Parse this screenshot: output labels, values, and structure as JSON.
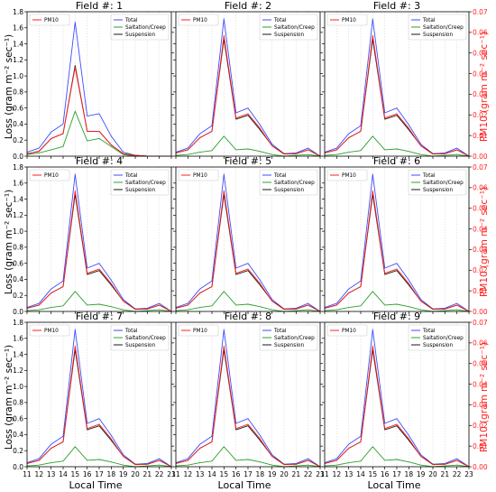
{
  "figure": {
    "xlabel": "Local Time",
    "ylabel_left": "Loss (gram m⁻² sec⁻¹)",
    "ylabel_right": "PM10 (gram m⁻² sec⁻¹)"
  },
  "colors": {
    "total": "#3b4cff",
    "saltation": "#2ca02c",
    "suspension": "#1a1a1a",
    "pm10": "#ff1f1f",
    "grid": "#d9d9d9",
    "axis": "#000000"
  },
  "legend_labels": {
    "pm10": "PM10",
    "total": "Total",
    "saltation": "Saltation/Creep",
    "suspension": "Suspension"
  },
  "chart_data": [
    {
      "type": "line",
      "title": "Field #: 1",
      "x": [
        11,
        12,
        13,
        14,
        15,
        16,
        17,
        18,
        19,
        20,
        21,
        22,
        23
      ],
      "xlim": [
        11,
        23
      ],
      "ylim_left": [
        0,
        1.8
      ],
      "ylim_right": [
        0,
        0.07
      ],
      "left_ticks": [
        "0.0",
        "0.2",
        "0.4",
        "0.6",
        "0.8",
        "1.0",
        "1.2",
        "1.4",
        "1.6",
        "1.8"
      ],
      "right_ticks": [
        "0.00",
        "0.01",
        "0.02",
        "0.03",
        "0.04",
        "0.05",
        "0.06",
        "0.07"
      ],
      "series": [
        {
          "name": "Total",
          "axis": "left",
          "values": [
            0.05,
            0.1,
            0.3,
            0.4,
            1.67,
            0.5,
            0.53,
            0.25,
            0.05,
            0.01,
            0.0,
            0.0,
            0.0
          ]
        },
        {
          "name": "Saltation/Creep",
          "axis": "left",
          "values": [
            0.02,
            0.04,
            0.08,
            0.12,
            0.56,
            0.19,
            0.22,
            0.12,
            0.02,
            0.0,
            0.0,
            0.0,
            0.0
          ]
        },
        {
          "name": "Suspension",
          "axis": "left",
          "values": [
            0.03,
            0.06,
            0.22,
            0.28,
            1.13,
            0.31,
            0.31,
            0.14,
            0.03,
            0.01,
            0.0,
            0.0,
            0.0
          ]
        },
        {
          "name": "PM10",
          "axis": "right",
          "values": [
            0.001,
            0.0025,
            0.0085,
            0.011,
            0.043,
            0.012,
            0.012,
            0.0055,
            0.0012,
            0.0004,
            0.0,
            0.0,
            0.0
          ]
        }
      ]
    },
    {
      "type": "line",
      "title": "Field #: 2",
      "x": [
        11,
        12,
        13,
        14,
        15,
        16,
        17,
        18,
        19,
        20,
        21,
        22,
        23
      ],
      "xlim": [
        11,
        23
      ],
      "ylim_left": [
        0,
        1.8
      ],
      "ylim_right": [
        0,
        0.07
      ],
      "left_ticks": [
        "0.0",
        "0.2",
        "0.4",
        "0.6",
        "0.8",
        "1.0",
        "1.2",
        "1.4",
        "1.6",
        "1.8"
      ],
      "right_ticks": [
        "0.00",
        "0.01",
        "0.02",
        "0.03",
        "0.04",
        "0.05",
        "0.06",
        "0.07"
      ],
      "series": [
        {
          "name": "Total",
          "axis": "left",
          "values": [
            0.05,
            0.1,
            0.28,
            0.38,
            1.71,
            0.54,
            0.6,
            0.39,
            0.15,
            0.03,
            0.04,
            0.1,
            0.0
          ]
        },
        {
          "name": "Saltation/Creep",
          "axis": "left",
          "values": [
            0.01,
            0.02,
            0.05,
            0.07,
            0.25,
            0.08,
            0.09,
            0.06,
            0.02,
            0.0,
            0.01,
            0.02,
            0.0
          ]
        },
        {
          "name": "Suspension",
          "axis": "left",
          "values": [
            0.04,
            0.08,
            0.23,
            0.31,
            1.46,
            0.46,
            0.51,
            0.33,
            0.13,
            0.03,
            0.03,
            0.08,
            0.0
          ]
        },
        {
          "name": "PM10",
          "axis": "right",
          "values": [
            0.0016,
            0.003,
            0.009,
            0.012,
            0.0585,
            0.0185,
            0.0205,
            0.0135,
            0.005,
            0.001,
            0.0012,
            0.003,
            0.0
          ]
        }
      ]
    },
    {
      "type": "line",
      "title": "Field #: 3",
      "x": [
        11,
        12,
        13,
        14,
        15,
        16,
        17,
        18,
        19,
        20,
        21,
        22,
        23
      ],
      "xlim": [
        11,
        23
      ],
      "ylim_left": [
        0,
        1.8
      ],
      "ylim_right": [
        0,
        0.07
      ],
      "left_ticks": [
        "0.0",
        "0.2",
        "0.4",
        "0.6",
        "0.8",
        "1.0",
        "1.2",
        "1.4",
        "1.6",
        "1.8"
      ],
      "right_ticks": [
        "0.00",
        "0.01",
        "0.02",
        "0.03",
        "0.04",
        "0.05",
        "0.06",
        "0.07"
      ],
      "series": [
        {
          "name": "Total",
          "axis": "left",
          "values": [
            0.05,
            0.1,
            0.28,
            0.38,
            1.71,
            0.54,
            0.6,
            0.39,
            0.15,
            0.03,
            0.04,
            0.1,
            0.0
          ]
        },
        {
          "name": "Saltation/Creep",
          "axis": "left",
          "values": [
            0.01,
            0.02,
            0.05,
            0.07,
            0.25,
            0.08,
            0.09,
            0.06,
            0.02,
            0.0,
            0.01,
            0.02,
            0.0
          ]
        },
        {
          "name": "Suspension",
          "axis": "left",
          "values": [
            0.04,
            0.08,
            0.23,
            0.31,
            1.46,
            0.46,
            0.51,
            0.33,
            0.13,
            0.03,
            0.03,
            0.08,
            0.0
          ]
        },
        {
          "name": "PM10",
          "axis": "right",
          "values": [
            0.0016,
            0.003,
            0.009,
            0.012,
            0.0585,
            0.0185,
            0.0205,
            0.0135,
            0.005,
            0.001,
            0.0012,
            0.003,
            0.0
          ]
        }
      ]
    },
    {
      "type": "line",
      "title": "Field #: 4",
      "x": [
        11,
        12,
        13,
        14,
        15,
        16,
        17,
        18,
        19,
        20,
        21,
        22,
        23
      ],
      "xlim": [
        11,
        23
      ],
      "ylim_left": [
        0,
        1.8
      ],
      "ylim_right": [
        0,
        0.07
      ],
      "left_ticks": [
        "0.0",
        "0.2",
        "0.4",
        "0.6",
        "0.8",
        "1.0",
        "1.2",
        "1.4",
        "1.6",
        "1.8"
      ],
      "right_ticks": [
        "0.00",
        "0.01",
        "0.02",
        "0.03",
        "0.04",
        "0.05",
        "0.06",
        "0.07"
      ],
      "series": [
        {
          "name": "Total",
          "axis": "left",
          "values": [
            0.05,
            0.1,
            0.28,
            0.38,
            1.71,
            0.54,
            0.6,
            0.39,
            0.15,
            0.03,
            0.04,
            0.1,
            0.0
          ]
        },
        {
          "name": "Saltation/Creep",
          "axis": "left",
          "values": [
            0.01,
            0.02,
            0.05,
            0.07,
            0.25,
            0.08,
            0.09,
            0.06,
            0.02,
            0.0,
            0.01,
            0.02,
            0.0
          ]
        },
        {
          "name": "Suspension",
          "axis": "left",
          "values": [
            0.04,
            0.08,
            0.23,
            0.31,
            1.46,
            0.46,
            0.51,
            0.33,
            0.13,
            0.03,
            0.03,
            0.08,
            0.0
          ]
        },
        {
          "name": "PM10",
          "axis": "right",
          "values": [
            0.0016,
            0.003,
            0.009,
            0.012,
            0.0585,
            0.0185,
            0.0205,
            0.0135,
            0.005,
            0.001,
            0.0012,
            0.003,
            0.0
          ]
        }
      ]
    },
    {
      "type": "line",
      "title": "Field #: 5",
      "x": [
        11,
        12,
        13,
        14,
        15,
        16,
        17,
        18,
        19,
        20,
        21,
        22,
        23
      ],
      "xlim": [
        11,
        23
      ],
      "ylim_left": [
        0,
        1.8
      ],
      "ylim_right": [
        0,
        0.07
      ],
      "left_ticks": [
        "0.0",
        "0.2",
        "0.4",
        "0.6",
        "0.8",
        "1.0",
        "1.2",
        "1.4",
        "1.6",
        "1.8"
      ],
      "right_ticks": [
        "0.00",
        "0.01",
        "0.02",
        "0.03",
        "0.04",
        "0.05",
        "0.06",
        "0.07"
      ],
      "series": [
        {
          "name": "Total",
          "axis": "left",
          "values": [
            0.05,
            0.1,
            0.28,
            0.38,
            1.71,
            0.54,
            0.6,
            0.39,
            0.15,
            0.03,
            0.04,
            0.1,
            0.0
          ]
        },
        {
          "name": "Saltation/Creep",
          "axis": "left",
          "values": [
            0.01,
            0.02,
            0.05,
            0.07,
            0.25,
            0.08,
            0.09,
            0.06,
            0.02,
            0.0,
            0.01,
            0.02,
            0.0
          ]
        },
        {
          "name": "Suspension",
          "axis": "left",
          "values": [
            0.04,
            0.08,
            0.23,
            0.31,
            1.46,
            0.46,
            0.51,
            0.33,
            0.13,
            0.03,
            0.03,
            0.08,
            0.0
          ]
        },
        {
          "name": "PM10",
          "axis": "right",
          "values": [
            0.0016,
            0.003,
            0.009,
            0.012,
            0.0585,
            0.0185,
            0.0205,
            0.0135,
            0.005,
            0.001,
            0.0012,
            0.003,
            0.0
          ]
        }
      ]
    },
    {
      "type": "line",
      "title": "Field #: 6",
      "x": [
        11,
        12,
        13,
        14,
        15,
        16,
        17,
        18,
        19,
        20,
        21,
        22,
        23
      ],
      "xlim": [
        11,
        23
      ],
      "ylim_left": [
        0,
        1.8
      ],
      "ylim_right": [
        0,
        0.07
      ],
      "left_ticks": [
        "0.0",
        "0.2",
        "0.4",
        "0.6",
        "0.8",
        "1.0",
        "1.2",
        "1.4",
        "1.6",
        "1.8"
      ],
      "right_ticks": [
        "0.00",
        "0.01",
        "0.02",
        "0.03",
        "0.04",
        "0.05",
        "0.06",
        "0.07"
      ],
      "series": [
        {
          "name": "Total",
          "axis": "left",
          "values": [
            0.05,
            0.1,
            0.28,
            0.38,
            1.71,
            0.54,
            0.6,
            0.39,
            0.15,
            0.03,
            0.04,
            0.1,
            0.0
          ]
        },
        {
          "name": "Saltation/Creep",
          "axis": "left",
          "values": [
            0.01,
            0.02,
            0.05,
            0.07,
            0.25,
            0.08,
            0.09,
            0.06,
            0.02,
            0.0,
            0.01,
            0.02,
            0.0
          ]
        },
        {
          "name": "Suspension",
          "axis": "left",
          "values": [
            0.04,
            0.08,
            0.23,
            0.31,
            1.46,
            0.46,
            0.51,
            0.33,
            0.13,
            0.03,
            0.03,
            0.08,
            0.0
          ]
        },
        {
          "name": "PM10",
          "axis": "right",
          "values": [
            0.0016,
            0.003,
            0.009,
            0.012,
            0.0585,
            0.0185,
            0.0205,
            0.0135,
            0.005,
            0.001,
            0.0012,
            0.003,
            0.0
          ]
        }
      ]
    },
    {
      "type": "line",
      "title": "Field #: 7",
      "x": [
        11,
        12,
        13,
        14,
        15,
        16,
        17,
        18,
        19,
        20,
        21,
        22,
        23
      ],
      "xlim": [
        11,
        23
      ],
      "ylim_left": [
        0,
        1.8
      ],
      "ylim_right": [
        0,
        0.07
      ],
      "left_ticks": [
        "0.0",
        "0.2",
        "0.4",
        "0.6",
        "0.8",
        "1.0",
        "1.2",
        "1.4",
        "1.6",
        "1.8"
      ],
      "right_ticks": [
        "0.00",
        "0.01",
        "0.02",
        "0.03",
        "0.04",
        "0.05",
        "0.06",
        "0.07"
      ],
      "series": [
        {
          "name": "Total",
          "axis": "left",
          "values": [
            0.05,
            0.1,
            0.28,
            0.38,
            1.71,
            0.54,
            0.6,
            0.39,
            0.15,
            0.03,
            0.04,
            0.1,
            0.0
          ]
        },
        {
          "name": "Saltation/Creep",
          "axis": "left",
          "values": [
            0.01,
            0.02,
            0.05,
            0.07,
            0.25,
            0.08,
            0.09,
            0.06,
            0.02,
            0.0,
            0.01,
            0.02,
            0.0
          ]
        },
        {
          "name": "Suspension",
          "axis": "left",
          "values": [
            0.04,
            0.08,
            0.23,
            0.31,
            1.46,
            0.46,
            0.51,
            0.33,
            0.13,
            0.03,
            0.03,
            0.08,
            0.0
          ]
        },
        {
          "name": "PM10",
          "axis": "right",
          "values": [
            0.0016,
            0.003,
            0.009,
            0.012,
            0.0585,
            0.0185,
            0.0205,
            0.0135,
            0.005,
            0.001,
            0.0012,
            0.003,
            0.0
          ]
        }
      ]
    },
    {
      "type": "line",
      "title": "Field #: 8",
      "x": [
        11,
        12,
        13,
        14,
        15,
        16,
        17,
        18,
        19,
        20,
        21,
        22,
        23
      ],
      "xlim": [
        11,
        23
      ],
      "ylim_left": [
        0,
        1.8
      ],
      "ylim_right": [
        0,
        0.07
      ],
      "left_ticks": [
        "0.0",
        "0.2",
        "0.4",
        "0.6",
        "0.8",
        "1.0",
        "1.2",
        "1.4",
        "1.6",
        "1.8"
      ],
      "right_ticks": [
        "0.00",
        "0.01",
        "0.02",
        "0.03",
        "0.04",
        "0.05",
        "0.06",
        "0.07"
      ],
      "series": [
        {
          "name": "Total",
          "axis": "left",
          "values": [
            0.05,
            0.1,
            0.28,
            0.38,
            1.71,
            0.54,
            0.6,
            0.39,
            0.15,
            0.03,
            0.04,
            0.1,
            0.0
          ]
        },
        {
          "name": "Saltation/Creep",
          "axis": "left",
          "values": [
            0.01,
            0.02,
            0.05,
            0.07,
            0.25,
            0.08,
            0.09,
            0.06,
            0.02,
            0.0,
            0.01,
            0.02,
            0.0
          ]
        },
        {
          "name": "Suspension",
          "axis": "left",
          "values": [
            0.04,
            0.08,
            0.23,
            0.31,
            1.46,
            0.46,
            0.51,
            0.33,
            0.13,
            0.03,
            0.03,
            0.08,
            0.0
          ]
        },
        {
          "name": "PM10",
          "axis": "right",
          "values": [
            0.0016,
            0.003,
            0.009,
            0.012,
            0.0585,
            0.0185,
            0.0205,
            0.0135,
            0.005,
            0.001,
            0.0012,
            0.003,
            0.0
          ]
        }
      ]
    },
    {
      "type": "line",
      "title": "Field #: 9",
      "x": [
        11,
        12,
        13,
        14,
        15,
        16,
        17,
        18,
        19,
        20,
        21,
        22,
        23
      ],
      "xlim": [
        11,
        23
      ],
      "ylim_left": [
        0,
        1.8
      ],
      "ylim_right": [
        0,
        0.07
      ],
      "left_ticks": [
        "0.0",
        "0.2",
        "0.4",
        "0.6",
        "0.8",
        "1.0",
        "1.2",
        "1.4",
        "1.6",
        "1.8"
      ],
      "right_ticks": [
        "0.00",
        "0.01",
        "0.02",
        "0.03",
        "0.04",
        "0.05",
        "0.06",
        "0.07"
      ],
      "series": [
        {
          "name": "Total",
          "axis": "left",
          "values": [
            0.05,
            0.1,
            0.28,
            0.38,
            1.71,
            0.54,
            0.6,
            0.39,
            0.15,
            0.03,
            0.04,
            0.1,
            0.0
          ]
        },
        {
          "name": "Saltation/Creep",
          "axis": "left",
          "values": [
            0.01,
            0.02,
            0.05,
            0.07,
            0.25,
            0.08,
            0.09,
            0.06,
            0.02,
            0.0,
            0.01,
            0.02,
            0.0
          ]
        },
        {
          "name": "Suspension",
          "axis": "left",
          "values": [
            0.04,
            0.08,
            0.23,
            0.31,
            1.46,
            0.46,
            0.51,
            0.33,
            0.13,
            0.03,
            0.03,
            0.08,
            0.0
          ]
        },
        {
          "name": "PM10",
          "axis": "right",
          "values": [
            0.0016,
            0.003,
            0.009,
            0.012,
            0.0585,
            0.0185,
            0.0205,
            0.0135,
            0.005,
            0.001,
            0.0012,
            0.003,
            0.0
          ]
        }
      ]
    }
  ]
}
